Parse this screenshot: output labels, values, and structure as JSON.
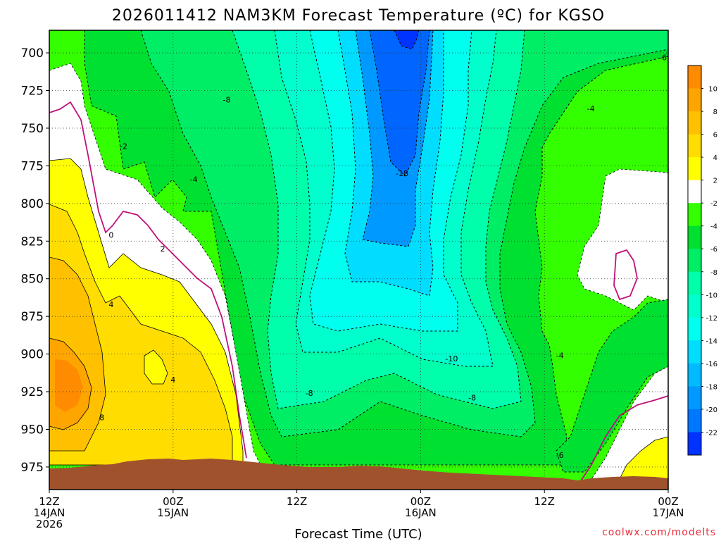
{
  "chart_data": {
    "type": "heatmap",
    "title": "2026011412 NAM3KM Forecast Temperature (ºC) for KGSO",
    "xlabel": "Forecast Time (UTC)",
    "ylabel": "",
    "y_scale": "pressure",
    "ylim": [
      685,
      990
    ],
    "y_ticks": [
      700,
      725,
      750,
      775,
      800,
      825,
      850,
      875,
      900,
      925,
      950,
      975
    ],
    "x_ticks": [
      {
        "hour": 0,
        "line1": "12Z",
        "line2": "14JAN",
        "line3": "2026"
      },
      {
        "hour": 12,
        "line1": "00Z",
        "line2": "15JAN",
        "line3": ""
      },
      {
        "hour": 24,
        "line1": "12Z",
        "line2": "",
        "line3": ""
      },
      {
        "hour": 36,
        "line1": "00Z",
        "line2": "16JAN",
        "line3": ""
      },
      {
        "hour": 48,
        "line1": "12Z",
        "line2": "",
        "line3": ""
      },
      {
        "hour": 60,
        "line1": "00Z",
        "line2": "17JAN",
        "line3": ""
      }
    ],
    "xlim": [
      0,
      60
    ],
    "grid": true,
    "colorbar": {
      "levels": [
        10,
        8,
        6,
        4,
        2,
        -2,
        -4,
        -6,
        -8,
        -10,
        -12,
        -14,
        -16,
        -18,
        -20,
        -22
      ],
      "colors": [
        "#ff8c00",
        "#ffa500",
        "#ffc000",
        "#ffdd00",
        "#ffff00",
        "#ffffff",
        "#33ff00",
        "#00e030",
        "#00ee66",
        "#00ffaa",
        "#00ffcc",
        "#00ffee",
        "#00ddff",
        "#00bbff",
        "#0099ff",
        "#0077ff",
        "#0033ff"
      ]
    },
    "contour_labels": [
      {
        "text": "-8",
        "hour": 17.2,
        "p": 731
      },
      {
        "text": "-2",
        "hour": 7.2,
        "p": 762
      },
      {
        "text": "-4",
        "hour": 14.0,
        "p": 784
      },
      {
        "text": "0",
        "hour": 6.0,
        "p": 821
      },
      {
        "text": "2",
        "hour": 11.0,
        "p": 830
      },
      {
        "text": "4",
        "hour": 6.0,
        "p": 867
      },
      {
        "text": "4",
        "hour": 12.0,
        "p": 917
      },
      {
        "text": "8",
        "hour": 5.1,
        "p": 942
      },
      {
        "text": "-18",
        "hour": 34.2,
        "p": 780
      },
      {
        "text": "-10",
        "hour": 39.0,
        "p": 903
      },
      {
        "text": "-8",
        "hour": 25.2,
        "p": 926
      },
      {
        "text": "-8",
        "hour": 41.0,
        "p": 929
      },
      {
        "text": "-6",
        "hour": 59.5,
        "p": 703
      },
      {
        "text": "-4",
        "hour": 52.5,
        "p": 737
      },
      {
        "text": "-4",
        "hour": 49.5,
        "p": 901
      },
      {
        "text": "-6",
        "hour": 49.5,
        "p": 967
      }
    ],
    "sample_profile_00Z16JAN": [
      {
        "p": 700,
        "t": -22
      },
      {
        "p": 750,
        "t": -20
      },
      {
        "p": 800,
        "t": -16
      },
      {
        "p": 850,
        "t": -12
      },
      {
        "p": 900,
        "t": -10
      },
      {
        "p": 950,
        "t": -6
      }
    ]
  },
  "credit": "coolwx.com/modelts"
}
